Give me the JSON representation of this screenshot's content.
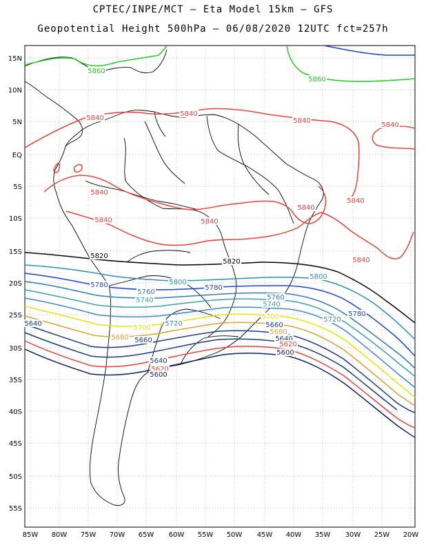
{
  "header": {
    "line1": "CPTEC/INPE/MCT –  Eta Model 15km – GFS",
    "line2": "Geopotential Height 500hPa – 06/08/2020 12UTC fct=257h"
  },
  "axes": {
    "lat_labels": [
      "15N",
      "10N",
      "5N",
      "EQ",
      "5S",
      "10S",
      "15S",
      "20S",
      "25S",
      "30S",
      "35S",
      "40S",
      "45S",
      "50S",
      "55S"
    ],
    "lon_labels": [
      "85W",
      "80W",
      "75W",
      "70W",
      "65W",
      "60W",
      "55W",
      "50W",
      "45W",
      "40W",
      "35W",
      "30W",
      "25W",
      "20W"
    ]
  },
  "contour_labels": [
    {
      "text": "5860",
      "color": "#22cc22"
    },
    {
      "text": "5860",
      "color": "#22cc22"
    },
    {
      "text": "5840",
      "color": "#e8413c"
    },
    {
      "text": "5840",
      "color": "#e8413c"
    },
    {
      "text": "5840",
      "color": "#e8413c"
    },
    {
      "text": "5840",
      "color": "#e8413c"
    },
    {
      "text": "5840",
      "color": "#e8413c"
    },
    {
      "text": "5840",
      "color": "#e8413c"
    },
    {
      "text": "5840",
      "color": "#e8413c"
    },
    {
      "text": "5840",
      "color": "#e8413c"
    },
    {
      "text": "5840",
      "color": "#e8413c"
    },
    {
      "text": "5840",
      "color": "#e8413c"
    },
    {
      "text": "5820",
      "color": "#000000"
    },
    {
      "text": "5820",
      "color": "#000000"
    },
    {
      "text": "5800",
      "color": "#2a8fb0"
    },
    {
      "text": "5800",
      "color": "#2a8fb0"
    },
    {
      "text": "5780",
      "color": "#1c3fd6"
    },
    {
      "text": "5780",
      "color": "#1c3fd6"
    },
    {
      "text": "5780",
      "color": "#1c3fd6"
    },
    {
      "text": "5760",
      "color": "#2f78b8"
    },
    {
      "text": "5760",
      "color": "#2f78b8"
    },
    {
      "text": "5740",
      "color": "#3aa0a8"
    },
    {
      "text": "5740",
      "color": "#3aa0a8"
    },
    {
      "text": "5720",
      "color": "#3f86c8"
    },
    {
      "text": "5720",
      "color": "#3f86c8"
    },
    {
      "text": "5700",
      "color": "#e6e600"
    },
    {
      "text": "5700",
      "color": "#e6e600"
    },
    {
      "text": "5680",
      "color": "#e0a030"
    },
    {
      "text": "5680",
      "color": "#e0a030"
    },
    {
      "text": "5660",
      "color": "#1b3a7a"
    },
    {
      "text": "5660",
      "color": "#1b3a7a"
    },
    {
      "text": "5640",
      "color": "#1b3a7a"
    },
    {
      "text": "5640",
      "color": "#1b3a7a"
    },
    {
      "text": "5640",
      "color": "#1b3a7a"
    },
    {
      "text": "5620",
      "color": "#e8413c"
    },
    {
      "text": "5620",
      "color": "#e8413c"
    },
    {
      "text": "5600",
      "color": "#0d1f5e"
    },
    {
      "text": "5600",
      "color": "#0d1f5e"
    }
  ]
}
